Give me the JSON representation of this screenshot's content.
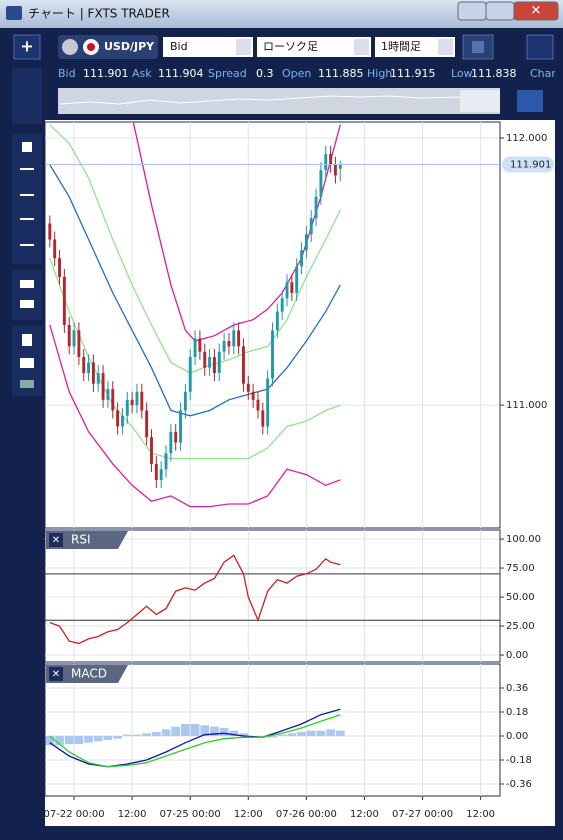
{
  "window": {
    "title": "チャート | FXTS TRADER"
  },
  "toolbar": {
    "symbol": "USD/JPY",
    "price_side": "Bid",
    "chart_kind": "ローソク足",
    "timeframe": "1時間足"
  },
  "quote": [
    {
      "label": "Bid",
      "value": "111.901"
    },
    {
      "label": "Ask",
      "value": "111.904"
    },
    {
      "label": "Spread",
      "value": "0.3"
    },
    {
      "label": "Open",
      "value": "111.885"
    },
    {
      "label": "High",
      "value": "111.915"
    },
    {
      "label": "Low",
      "value": "111.838"
    },
    {
      "label": "Chang"
    }
  ],
  "chart_data": [
    {
      "type": "candlestick",
      "up_color": "#1f9aa6",
      "down_color": "#b3262b",
      "xlim": [
        -1,
        93
      ],
      "ylim": [
        110.54,
        112.06
      ],
      "yticks": [
        {
          "value": 112,
          "label": "112.000"
        },
        {
          "value": 111,
          "label": "111.000"
        }
      ],
      "xticks": [
        {
          "value": 5,
          "label": "07-22 00:00"
        },
        {
          "value": 17,
          "label": "12:00"
        },
        {
          "value": 29,
          "label": "07-25 00:00"
        },
        {
          "value": 41,
          "label": "12:00"
        },
        {
          "value": 53,
          "label": "07-26 00:00"
        },
        {
          "value": 65,
          "label": "12:00"
        },
        {
          "value": 77,
          "label": "07-27 00:00"
        },
        {
          "value": 89,
          "label": "12:00"
        }
      ],
      "grid": true,
      "last": 111.901,
      "last_color": "#a9c4ec",
      "open": [
        111.68,
        111.62,
        111.55,
        111.48,
        111.3,
        111.22,
        111.28,
        111.18,
        111.12,
        111.16,
        111.08,
        111.12,
        111.02,
        111.06,
        110.98,
        110.92,
        110.96,
        111.02,
        111.0,
        111.05,
        110.98,
        110.88,
        110.78,
        110.72,
        110.76,
        110.82,
        110.9,
        110.86,
        110.98,
        111.05,
        111.18,
        111.25,
        111.2,
        111.14,
        111.18,
        111.12,
        111.2,
        111.24,
        111.22,
        111.28,
        111.22,
        111.08,
        111.05,
        111.02,
        110.98,
        110.92,
        111.1,
        111.28,
        111.35,
        111.4,
        111.46,
        111.42,
        111.52,
        111.58,
        111.64,
        111.7,
        111.78,
        111.88,
        111.94,
        111.9,
        111.885
      ],
      "high": [
        111.71,
        111.65,
        111.58,
        111.51,
        111.33,
        111.31,
        111.31,
        111.21,
        111.19,
        111.19,
        111.15,
        111.15,
        111.09,
        111.09,
        111.01,
        110.99,
        111.05,
        111.05,
        111.08,
        111.08,
        111.01,
        110.91,
        110.81,
        110.79,
        110.85,
        110.93,
        110.93,
        111.01,
        111.08,
        111.21,
        111.28,
        111.28,
        111.23,
        111.21,
        111.21,
        111.23,
        111.27,
        111.27,
        111.31,
        111.31,
        111.25,
        111.11,
        111.08,
        111.05,
        111.01,
        111.13,
        111.31,
        111.38,
        111.43,
        111.49,
        111.49,
        111.55,
        111.61,
        111.67,
        111.73,
        111.81,
        111.91,
        111.97,
        111.97,
        111.93,
        111.915
      ],
      "low": [
        111.59,
        111.52,
        111.45,
        111.27,
        111.19,
        111.19,
        111.15,
        111.09,
        111.09,
        111.05,
        111.05,
        110.99,
        110.99,
        110.95,
        110.89,
        110.89,
        110.93,
        110.97,
        110.97,
        110.95,
        110.85,
        110.75,
        110.69,
        110.69,
        110.73,
        110.79,
        110.83,
        110.83,
        110.95,
        111.02,
        111.15,
        111.17,
        111.11,
        111.11,
        111.09,
        111.09,
        111.17,
        111.19,
        111.19,
        111.19,
        111.05,
        111.02,
        110.99,
        110.95,
        110.89,
        110.89,
        111.07,
        111.25,
        111.32,
        111.37,
        111.39,
        111.39,
        111.49,
        111.55,
        111.61,
        111.67,
        111.75,
        111.85,
        111.87,
        111.83,
        111.838
      ],
      "close": [
        111.62,
        111.55,
        111.48,
        111.3,
        111.22,
        111.28,
        111.18,
        111.12,
        111.16,
        111.08,
        111.12,
        111.02,
        111.06,
        110.98,
        110.92,
        110.96,
        111.02,
        111.0,
        111.05,
        110.98,
        110.88,
        110.78,
        110.72,
        110.76,
        110.82,
        110.9,
        110.86,
        110.98,
        111.05,
        111.18,
        111.25,
        111.2,
        111.14,
        111.18,
        111.12,
        111.2,
        111.24,
        111.22,
        111.28,
        111.22,
        111.08,
        111.05,
        111.02,
        110.98,
        110.92,
        111.1,
        111.28,
        111.35,
        111.4,
        111.46,
        111.42,
        111.52,
        111.58,
        111.64,
        111.7,
        111.78,
        111.88,
        111.94,
        111.9,
        111.86,
        111.901
      ],
      "series": [
        {
          "color": "#d81fa0",
          "x": [
            17,
            21,
            25,
            28,
            30,
            34,
            38,
            42,
            45,
            48,
            52,
            56,
            60
          ],
          "values": [
            112.08,
            111.75,
            111.45,
            111.28,
            111.24,
            111.26,
            111.3,
            111.32,
            111.36,
            111.42,
            111.55,
            111.78,
            112.05
          ]
        },
        {
          "color": "#8ee58e",
          "x": [
            0,
            4,
            8,
            13,
            17,
            21,
            25,
            29,
            33,
            37,
            41,
            45,
            49,
            53,
            57,
            60
          ],
          "values": [
            112.05,
            111.98,
            111.85,
            111.62,
            111.45,
            111.3,
            111.16,
            111.12,
            111.15,
            111.17,
            111.2,
            111.22,
            111.32,
            111.48,
            111.62,
            111.73
          ]
        },
        {
          "color": "#1f6fc4",
          "x": [
            0,
            4,
            8,
            13,
            17,
            21,
            25,
            29,
            33,
            37,
            41,
            45,
            49,
            53,
            57,
            60
          ],
          "values": [
            111.9,
            111.78,
            111.62,
            111.42,
            111.28,
            111.14,
            110.98,
            110.96,
            110.98,
            111.02,
            111.04,
            111.06,
            111.14,
            111.24,
            111.35,
            111.45
          ]
        },
        {
          "color": "#8ee58e",
          "x": [
            0,
            4,
            8,
            13,
            17,
            21,
            25,
            29,
            33,
            37,
            41,
            45,
            49,
            53,
            57,
            60
          ],
          "values": [
            111.55,
            111.35,
            111.18,
            111.0,
            110.92,
            110.82,
            110.8,
            110.8,
            110.8,
            110.8,
            110.8,
            110.84,
            110.92,
            110.94,
            110.98,
            111.0
          ]
        },
        {
          "color": "#d81fa0",
          "x": [
            0,
            4,
            8,
            13,
            17,
            21,
            25,
            29,
            33,
            37,
            41,
            45,
            49,
            53,
            57,
            60
          ],
          "values": [
            111.3,
            111.05,
            110.9,
            110.78,
            110.7,
            110.64,
            110.66,
            110.62,
            110.62,
            110.63,
            110.63,
            110.66,
            110.76,
            110.74,
            110.7,
            110.72
          ]
        }
      ]
    },
    {
      "type": "line",
      "title": "RSI",
      "xlim": [
        -1,
        93
      ],
      "ylim": [
        -6,
        107.8
      ],
      "levels": [
        70,
        30
      ],
      "yticks": [
        {
          "value": 100,
          "label": "100.00"
        },
        {
          "value": 75,
          "label": "75.00"
        },
        {
          "value": 50,
          "label": "50.00"
        },
        {
          "value": 25,
          "label": "25.00"
        },
        {
          "value": 0,
          "label": "0.00"
        }
      ],
      "series": [
        {
          "color": "#c8201e",
          "x": [
            0,
            2,
            4,
            6,
            8,
            10,
            12,
            14,
            16,
            18,
            20,
            22,
            24,
            26,
            28,
            30,
            32,
            34,
            36,
            38,
            40,
            41,
            43,
            45,
            47,
            49,
            51,
            53,
            55,
            57,
            58,
            60
          ],
          "values": [
            28,
            25,
            12,
            10,
            14,
            16,
            20,
            22,
            28,
            35,
            42,
            35,
            40,
            55,
            58,
            56,
            62,
            66,
            80,
            86,
            70,
            50,
            30,
            55,
            65,
            62,
            68,
            70,
            74,
            83,
            80,
            78
          ]
        }
      ]
    },
    {
      "type": "line",
      "title": "MACD",
      "xlim": [
        -1,
        93
      ],
      "ylim": [
        -0.45,
        0.54
      ],
      "yticks": [
        0.36,
        0.18,
        {
          "value": 0,
          "label": "0.00"
        },
        -0.18,
        -0.36
      ],
      "series": [
        {
          "type": "bar",
          "color": "#aac8f0",
          "x": [
            0,
            2,
            4,
            6,
            8,
            10,
            12,
            14,
            16,
            18,
            20,
            22,
            24,
            26,
            28,
            30,
            32,
            34,
            36,
            38,
            40,
            42,
            44,
            46,
            48,
            50,
            52,
            54,
            56,
            58,
            60
          ],
          "values": [
            -0.07,
            -0.07,
            -0.06,
            -0.06,
            -0.05,
            -0.04,
            -0.03,
            -0.02,
            0.01,
            0.01,
            0.02,
            0.03,
            0.05,
            0.07,
            0.09,
            0.09,
            0.08,
            0.07,
            0.06,
            0.04,
            0.02,
            0.0,
            -0.01,
            -0.01,
            0.01,
            0.02,
            0.03,
            0.04,
            0.04,
            0.05,
            0.04
          ]
        },
        {
          "color": "#1414a0",
          "x": [
            0,
            4,
            8,
            12,
            16,
            20,
            24,
            28,
            32,
            36,
            40,
            44,
            48,
            52,
            56,
            60
          ],
          "values": [
            -0.05,
            -0.15,
            -0.21,
            -0.23,
            -0.21,
            -0.18,
            -0.12,
            -0.05,
            0.01,
            0.02,
            0.0,
            -0.01,
            0.04,
            0.09,
            0.16,
            0.2
          ]
        },
        {
          "color": "#2ecc2e",
          "x": [
            0,
            4,
            8,
            12,
            16,
            20,
            24,
            28,
            32,
            36,
            40,
            44,
            48,
            52,
            56,
            60
          ],
          "values": [
            0.0,
            -0.12,
            -0.2,
            -0.23,
            -0.22,
            -0.2,
            -0.15,
            -0.1,
            -0.05,
            -0.02,
            -0.01,
            -0.01,
            0.02,
            0.06,
            0.11,
            0.16
          ]
        }
      ]
    }
  ]
}
